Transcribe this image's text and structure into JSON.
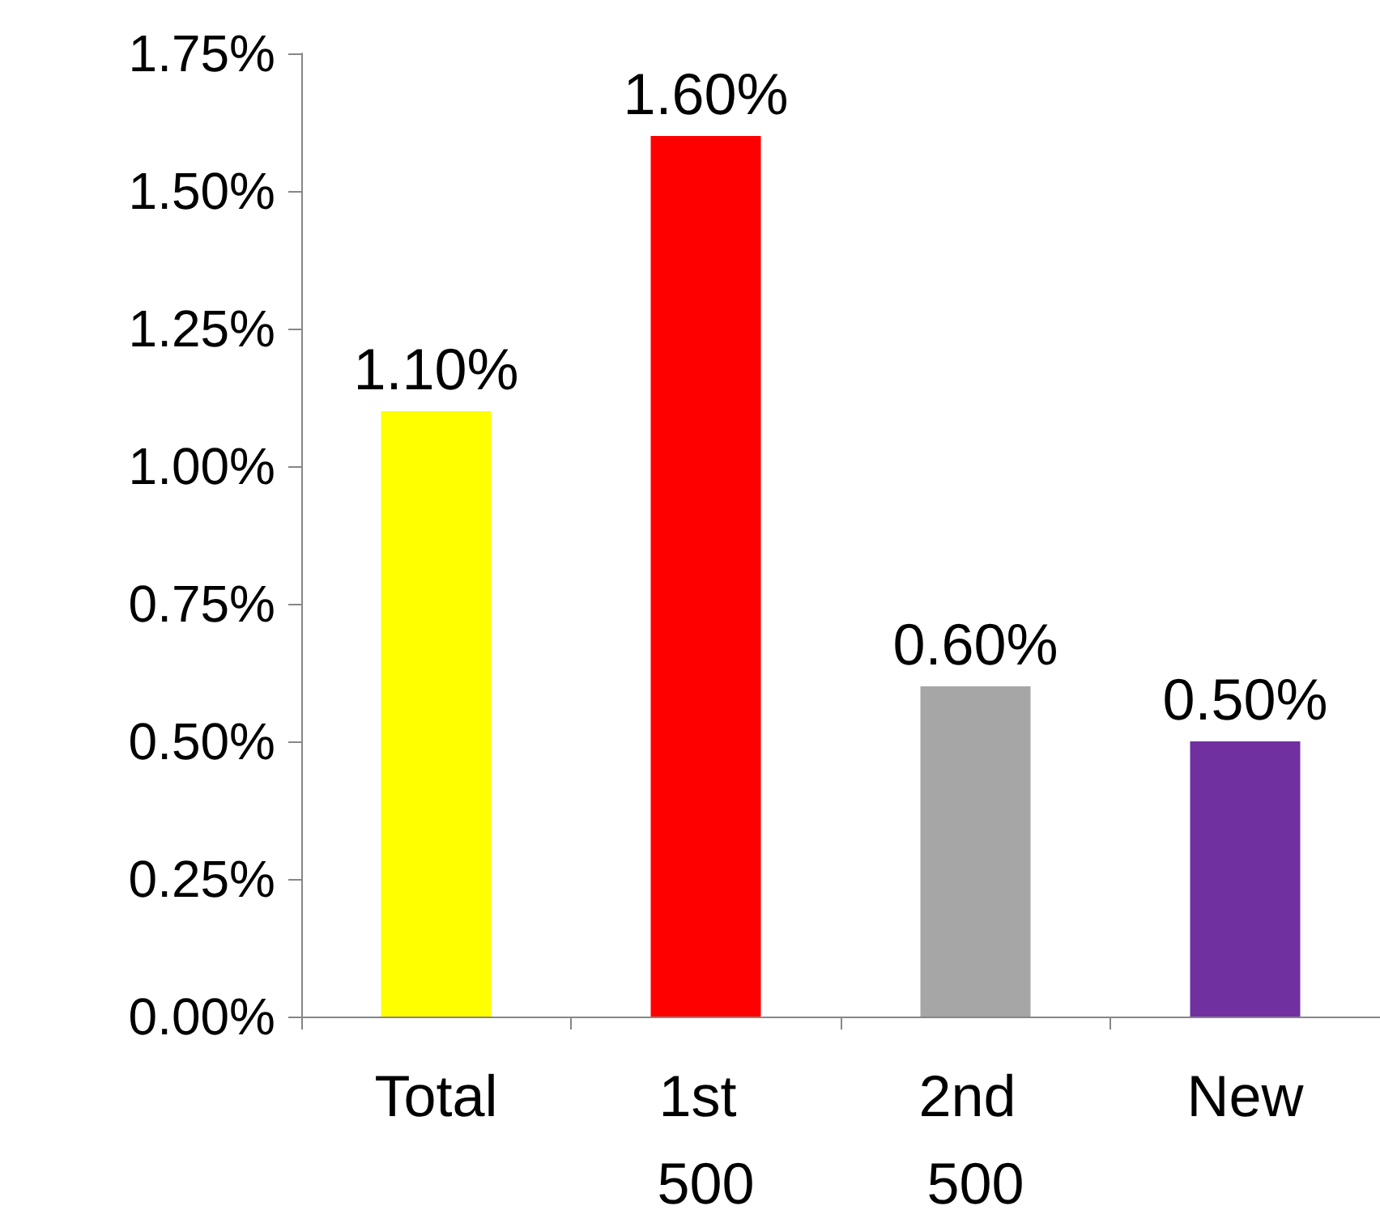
{
  "chart_data": {
    "type": "bar",
    "categories": [
      "Total",
      "1st 500",
      "2nd 500",
      "New"
    ],
    "values": [
      1.1,
      1.6,
      0.6,
      0.5
    ],
    "colors": [
      "#ffff00",
      "#ff0000",
      "#a6a6a6",
      "#7030a0"
    ],
    "value_labels": [
      "1.10%",
      "1.60%",
      "0.60%",
      "0.50%"
    ],
    "ylim": [
      0,
      1.75
    ],
    "yticks": [
      {
        "value": 0,
        "label": "0.00%"
      },
      {
        "value": 0.25,
        "label": "0.25%"
      },
      {
        "value": 0.5,
        "label": "0.50%"
      },
      {
        "value": 0.75,
        "label": "0.75%"
      },
      {
        "value": 1,
        "label": "1.00%"
      },
      {
        "value": 1.25,
        "label": "1.25%"
      },
      {
        "value": 1.5,
        "label": "1.50%"
      },
      {
        "value": 1.75,
        "label": "1.75%"
      }
    ],
    "grid": false
  }
}
